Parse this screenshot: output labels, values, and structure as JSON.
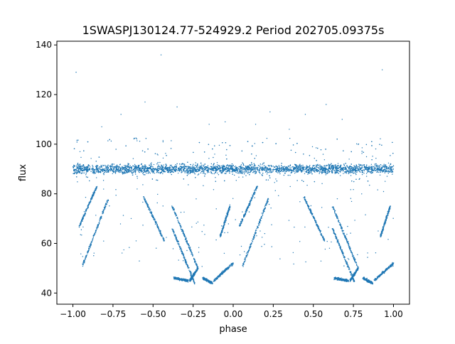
{
  "chart_data": {
    "type": "scatter",
    "title": "1SWASPJ130124.77-524929.2 Period 202705.09375s",
    "xlabel": "phase",
    "ylabel": "flux",
    "xlim": [
      -1.1,
      1.1
    ],
    "ylim": [
      35.5,
      141.5
    ],
    "x_ticks": [
      -1.0,
      -0.75,
      -0.5,
      -0.25,
      0.0,
      0.25,
      0.5,
      0.75,
      1.0
    ],
    "x_tick_labels": [
      "−1.00",
      "−0.75",
      "−0.50",
      "−0.25",
      "0.00",
      "0.25",
      "0.50",
      "0.75",
      "1.00"
    ],
    "y_ticks": [
      40,
      60,
      80,
      100,
      120,
      140
    ],
    "y_tick_labels": [
      "40",
      "60",
      "80",
      "100",
      "120",
      "140"
    ],
    "grid": false,
    "legend": "none",
    "marker_color": "#1f77b4",
    "baseline": {
      "phase_range": [
        -1.0,
        1.0
      ],
      "flux_center": 90,
      "flux_spread": [
        85,
        96
      ]
    },
    "tracks": [
      {
        "x": [
          -0.96,
          -0.85
        ],
        "y": [
          67,
          83
        ]
      },
      {
        "x": [
          -0.94,
          -0.78
        ],
        "y": [
          51,
          78
        ]
      },
      {
        "x": [
          -0.56,
          -0.43
        ],
        "y": [
          79,
          61
        ]
      },
      {
        "x": [
          -0.38,
          -0.24
        ],
        "y": [
          66,
          44
        ]
      },
      {
        "x": [
          -0.37,
          -0.28
        ],
        "y": [
          46,
          45
        ]
      },
      {
        "x": [
          -0.27,
          -0.22
        ],
        "y": [
          45,
          50
        ]
      },
      {
        "x": [
          -0.38,
          -0.22
        ],
        "y": [
          75,
          50
        ]
      },
      {
        "x": [
          -0.19,
          -0.13
        ],
        "y": [
          46,
          44
        ]
      },
      {
        "x": [
          -0.12,
          0.0
        ],
        "y": [
          45,
          52
        ]
      },
      {
        "x": [
          -0.08,
          -0.02
        ],
        "y": [
          63,
          75
        ]
      },
      {
        "x": [
          0.04,
          0.15
        ],
        "y": [
          67,
          83
        ]
      },
      {
        "x": [
          0.06,
          0.22
        ],
        "y": [
          51,
          78
        ]
      },
      {
        "x": [
          0.44,
          0.57
        ],
        "y": [
          79,
          61
        ]
      },
      {
        "x": [
          0.62,
          0.76
        ],
        "y": [
          66,
          44
        ]
      },
      {
        "x": [
          0.63,
          0.72
        ],
        "y": [
          46,
          45
        ]
      },
      {
        "x": [
          0.73,
          0.78
        ],
        "y": [
          45,
          50
        ]
      },
      {
        "x": [
          0.62,
          0.78
        ],
        "y": [
          75,
          50
        ]
      },
      {
        "x": [
          0.81,
          0.87
        ],
        "y": [
          46,
          44
        ]
      },
      {
        "x": [
          0.88,
          1.0
        ],
        "y": [
          45,
          52
        ]
      },
      {
        "x": [
          0.92,
          0.98
        ],
        "y": [
          63,
          75
        ]
      }
    ],
    "outliers": [
      [
        -0.98,
        129
      ],
      [
        -0.45,
        136
      ],
      [
        0.58,
        116
      ],
      [
        -0.55,
        117
      ],
      [
        0.14,
        108
      ],
      [
        -0.7,
        112
      ],
      [
        -0.35,
        115
      ],
      [
        0.23,
        113
      ],
      [
        0.93,
        130
      ],
      [
        -0.15,
        108
      ],
      [
        0.35,
        106
      ],
      [
        -0.82,
        107
      ],
      [
        0.68,
        110
      ],
      [
        -0.05,
        109
      ],
      [
        0.45,
        112
      ]
    ]
  }
}
